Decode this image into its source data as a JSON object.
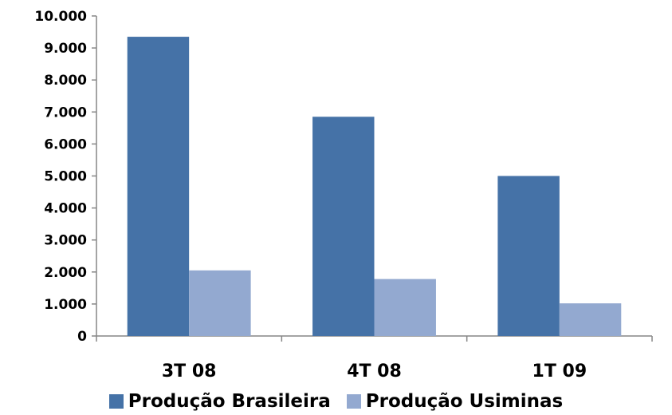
{
  "chart_data": {
    "type": "bar",
    "categories": [
      "3T 08",
      "4T 08",
      "1T 09"
    ],
    "series": [
      {
        "name": "Produção Brasileira",
        "values": [
          9350,
          6850,
          5000
        ],
        "color": "#4572A7"
      },
      {
        "name": "Produção Usiminas",
        "values": [
          2050,
          1780,
          1020
        ],
        "color": "#93A9D0"
      }
    ],
    "ylim": [
      0,
      10000
    ],
    "yticks": [
      0,
      1000,
      2000,
      3000,
      4000,
      5000,
      6000,
      7000,
      8000,
      9000,
      10000
    ],
    "ytick_labels": [
      "0",
      "1.000",
      "2.000",
      "3.000",
      "4.000",
      "5.000",
      "6.000",
      "7.000",
      "8.000",
      "9.000",
      "10.000"
    ],
    "grid": false,
    "legend_position": "bottom"
  }
}
